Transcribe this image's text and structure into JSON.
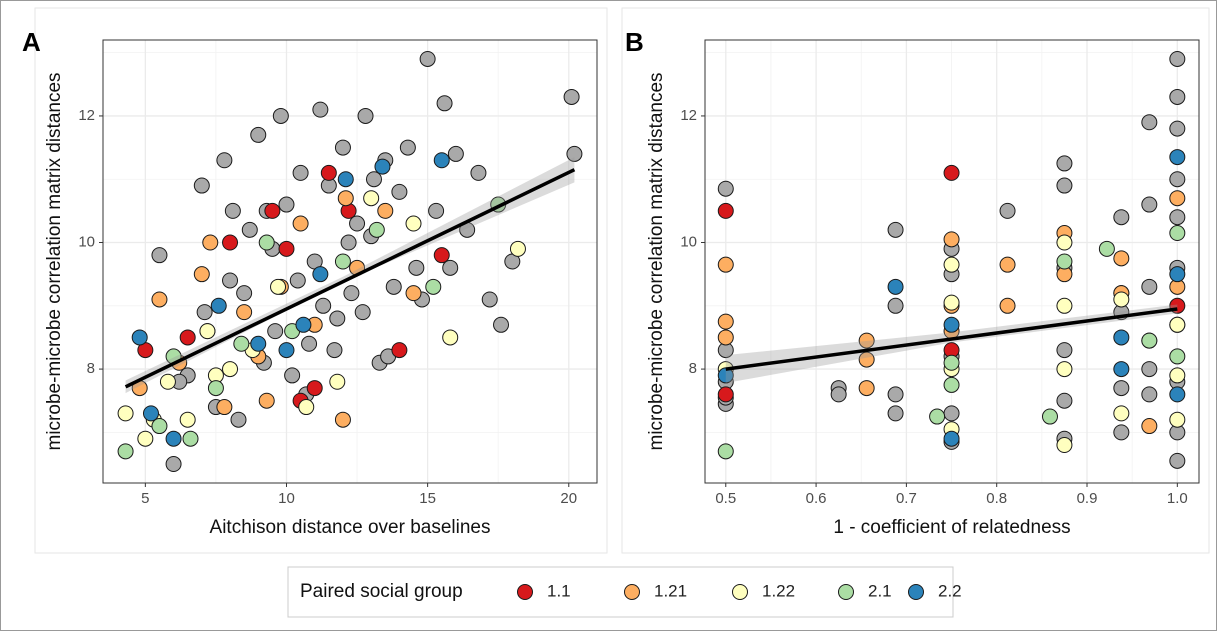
{
  "legend_title": "Paired social group",
  "chart_data": [
    {
      "type": "scatter",
      "panel_label": "A",
      "x_label": "Aitchison distance over baselines",
      "y_label": "microbe-microbe correlation matrix distances",
      "xlim": [
        3.5,
        21
      ],
      "ylim": [
        6.2,
        13.2
      ],
      "xticks": [
        5,
        10,
        15,
        20
      ],
      "yticks": [
        8,
        10,
        12
      ],
      "minor_xgrid": [
        7.5,
        12.5,
        17.5
      ],
      "minor_ygrid": [
        7,
        9,
        11,
        13
      ],
      "grid": true,
      "series": [
        {
          "color": "#a9a9a9",
          "x": [
            5.5,
            6,
            6.5,
            7,
            7.2,
            7.8,
            8,
            8.3,
            8.7,
            9,
            9.2,
            9.5,
            9.8,
            10,
            10.2,
            10.5,
            10.8,
            11,
            11.2,
            11.5,
            11.8,
            12,
            12.3,
            12.5,
            12.8,
            13,
            13.3,
            13.5,
            13.8,
            14,
            14.3,
            14.6,
            15,
            15.3,
            15.6,
            16,
            16.4,
            16.8,
            17.2,
            17.6,
            18,
            20.1,
            20.2,
            6.2,
            7.5,
            8.5,
            9.3,
            10.7,
            11.7,
            12.7,
            13.6,
            14.8,
            15.8,
            9.6,
            8.1,
            11.3,
            12.2,
            13.1,
            7.1,
            10.4
          ],
          "values": [
            9.8,
            6.5,
            7.9,
            10.9,
            8.6,
            11.3,
            9.4,
            7.2,
            10.2,
            11.7,
            8.1,
            9.9,
            12,
            10.6,
            7.9,
            11.1,
            8.4,
            9.7,
            12.1,
            10.9,
            8.8,
            11.5,
            9.2,
            10.3,
            12,
            10.1,
            8.1,
            11.3,
            9.3,
            10.8,
            11.5,
            9.6,
            12.9,
            10.5,
            12.2,
            11.4,
            10.2,
            11.1,
            9.1,
            8.7,
            9.7,
            12.3,
            11.4,
            7.8,
            7.4,
            9.2,
            10.5,
            7.6,
            8.3,
            8.9,
            8.2,
            9.1,
            9.6,
            8.6,
            10.5,
            9.0,
            10.0,
            11.0,
            8.9,
            9.4
          ]
        },
        {
          "name": "1.1",
          "color": "#d7191c",
          "x": [
            5,
            6.5,
            8,
            9.5,
            10,
            11,
            12.2,
            14,
            15.5,
            10.5,
            11.5
          ],
          "values": [
            8.3,
            8.5,
            10,
            10.5,
            9.9,
            7.7,
            10.5,
            8.3,
            9.8,
            7.5,
            11.1
          ]
        },
        {
          "name": "1.21",
          "color": "#fdae61",
          "x": [
            4.8,
            5.5,
            6.2,
            7,
            7.8,
            8.5,
            9,
            9.8,
            10.5,
            11,
            12,
            12.5,
            13.5,
            14.5,
            7.3,
            9.3,
            12.1
          ],
          "values": [
            7.7,
            9.1,
            8.1,
            9.5,
            7.4,
            8.9,
            8.2,
            9.3,
            10.3,
            8.7,
            7.2,
            9.6,
            10.5,
            9.2,
            10,
            7.5,
            10.7
          ]
        },
        {
          "name": "1.22",
          "color": "#ffffbf",
          "x": [
            4.3,
            5,
            5.8,
            6.5,
            7.2,
            8,
            8.8,
            9.7,
            10.7,
            11.8,
            13,
            14.5,
            15.8,
            18.2,
            5.3,
            7.5
          ],
          "values": [
            7.3,
            6.9,
            7.8,
            7.2,
            8.6,
            8,
            8.3,
            9.3,
            7.4,
            7.8,
            10.7,
            10.3,
            8.5,
            9.9,
            7.2,
            7.9
          ]
        },
        {
          "name": "2.1",
          "color": "#abdda4",
          "x": [
            4.3,
            5.5,
            6.6,
            7.5,
            8.4,
            9.3,
            10.2,
            12,
            13.2,
            15.2,
            17.5,
            6
          ],
          "values": [
            6.7,
            7.1,
            6.9,
            7.7,
            8.4,
            10,
            8.6,
            9.7,
            10.2,
            9.3,
            10.6,
            8.2
          ]
        },
        {
          "name": "2.2",
          "color": "#2b83ba",
          "x": [
            4.8,
            5.2,
            6,
            7.6,
            9,
            10,
            11.2,
            12.1,
            13.4,
            15.5,
            10.6
          ],
          "values": [
            8.5,
            7.3,
            6.9,
            9,
            8.4,
            8.3,
            9.5,
            11,
            11.2,
            11.3,
            8.7
          ]
        }
      ],
      "trend": {
        "x": [
          4.3,
          20.2
        ],
        "values": [
          7.72,
          11.15
        ]
      },
      "band": {
        "x": [
          4.3,
          12,
          20.2
        ],
        "lower": [
          7.62,
          9.38,
          10.95
        ],
        "upper": [
          7.82,
          9.46,
          11.35
        ]
      }
    },
    {
      "type": "scatter",
      "panel_label": "B",
      "x_label": "1 - coefficient of relatedness",
      "y_label": "microbe-microbe correlation matrix distances",
      "xlim": [
        0.477,
        1.024
      ],
      "ylim": [
        6.2,
        13.2
      ],
      "xticks": [
        0.5,
        0.6,
        0.7,
        0.8,
        0.9,
        {
          "value": 1,
          "label": "1.0"
        }
      ],
      "yticks": [
        8,
        10,
        12
      ],
      "minor_xgrid": [
        0.55,
        0.65,
        0.75,
        0.85,
        0.95
      ],
      "minor_ygrid": [
        7,
        9,
        11,
        13
      ],
      "grid": true,
      "series": [
        {
          "color": "#a9a9a9",
          "x": [
            0.5,
            0.5,
            0.5,
            0.5,
            0.5,
            0.625,
            0.625,
            0.688,
            0.688,
            0.688,
            0.688,
            0.75,
            0.75,
            0.75,
            0.75,
            0.75,
            0.812,
            0.875,
            0.875,
            0.875,
            0.875,
            0.875,
            0.875,
            0.938,
            0.938,
            0.938,
            0.938,
            0.938,
            0.969,
            0.969,
            0.969,
            0.969,
            0.969,
            1,
            1,
            1,
            1,
            1,
            1,
            1,
            1,
            1,
            1
          ],
          "values": [
            10.85,
            8.3,
            7.45,
            7.55,
            7.8,
            7.7,
            7.6,
            10.2,
            9,
            7.6,
            7.3,
            9.9,
            6.85,
            8.2,
            7.3,
            9.5,
            10.5,
            11.25,
            10.9,
            9.6,
            8.3,
            7.5,
            6.9,
            10.4,
            9.2,
            7.7,
            7.0,
            8.9,
            11.9,
            10.6,
            9.3,
            8.0,
            7.6,
            12.9,
            12.3,
            11.8,
            11.0,
            10.4,
            9.6,
            8.7,
            7.8,
            7.0,
            6.55
          ]
        },
        {
          "name": "1.1",
          "color": "#d7191c",
          "x": [
            0.5,
            0.5,
            0.75,
            0.75,
            0.969,
            1
          ],
          "values": [
            10.5,
            7.6,
            11.1,
            8.3,
            8.45,
            9.0
          ]
        },
        {
          "name": "1.21",
          "color": "#fdae61",
          "x": [
            0.5,
            0.5,
            0.5,
            0.656,
            0.656,
            0.656,
            0.75,
            0.75,
            0.75,
            0.812,
            0.812,
            0.875,
            0.875,
            0.938,
            0.938,
            0.969,
            1,
            1
          ],
          "values": [
            9.65,
            8.75,
            8.5,
            8.45,
            8.15,
            7.7,
            10.05,
            9.0,
            8.6,
            9.65,
            9.0,
            10.15,
            9.5,
            9.75,
            9.2,
            7.1,
            10.7,
            9.3
          ]
        },
        {
          "name": "1.22",
          "color": "#ffffbf",
          "x": [
            0.5,
            0.75,
            0.75,
            0.75,
            0.75,
            0.875,
            0.875,
            0.875,
            0.875,
            0.938,
            0.938,
            1,
            1,
            1
          ],
          "values": [
            8.0,
            9.65,
            9.05,
            8.0,
            7.05,
            10.0,
            9.0,
            8.0,
            6.8,
            9.1,
            7.3,
            8.7,
            7.9,
            7.2
          ]
        },
        {
          "name": "2.1",
          "color": "#abdda4",
          "x": [
            0.5,
            0.734,
            0.75,
            0.75,
            0.859,
            0.875,
            0.922,
            0.969,
            1,
            1
          ],
          "values": [
            6.7,
            7.25,
            8.1,
            7.75,
            7.25,
            9.7,
            9.9,
            8.45,
            10.15,
            8.2
          ]
        },
        {
          "name": "2.2",
          "color": "#2b83ba",
          "x": [
            0.5,
            0.688,
            0.75,
            0.75,
            0.938,
            0.938,
            1,
            1,
            1
          ],
          "values": [
            7.9,
            9.3,
            8.7,
            6.9,
            8.5,
            8.0,
            11.35,
            9.5,
            7.6
          ]
        }
      ],
      "trend": {
        "x": [
          0.5,
          1
        ],
        "values": [
          8.0,
          8.95
        ]
      },
      "band": {
        "x": [
          0.5,
          0.75,
          1
        ],
        "lower": [
          7.78,
          8.42,
          8.88
        ],
        "upper": [
          8.22,
          8.58,
          9.02
        ]
      }
    }
  ]
}
